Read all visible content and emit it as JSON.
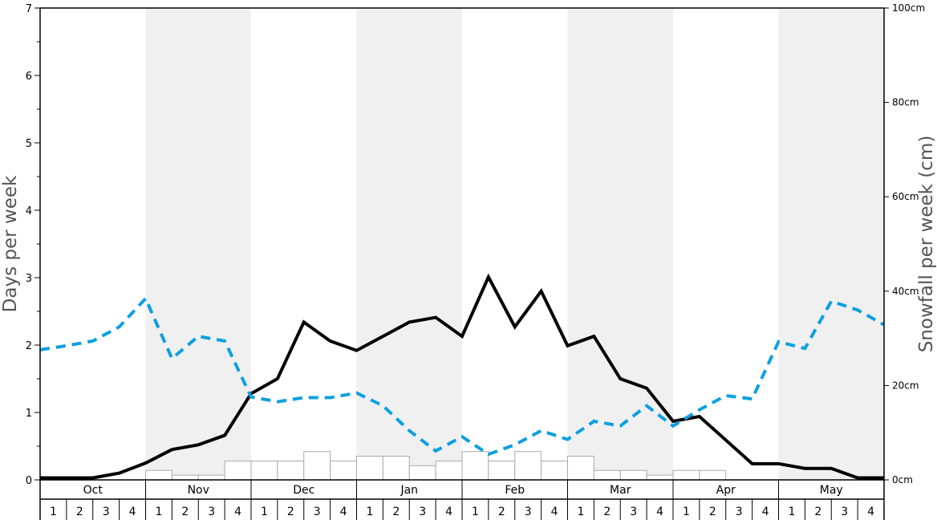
{
  "chart_data": {
    "type": "bar",
    "ylabel_left": "Days per week",
    "ylabel_right": "Snowfall per week (cm)",
    "ylim_left": [
      0,
      7
    ],
    "yticks_left": [
      "0",
      "1",
      "2",
      "3",
      "4",
      "5",
      "6",
      "7"
    ],
    "ylim_right": [
      0,
      100
    ],
    "yticks_right": [
      "0cm",
      "20cm",
      "40cm",
      "60cm",
      "80cm",
      "100cm"
    ],
    "months": [
      "Oct",
      "Nov",
      "Dec",
      "Jan",
      "Feb",
      "Mar",
      "Apr",
      "May"
    ],
    "weeks": [
      "1",
      "2",
      "3",
      "4"
    ],
    "shaded_months": [
      "Nov",
      "Jan",
      "Mar",
      "May"
    ],
    "colors": {
      "shade": "#f0f0f0",
      "dashed_line": "#0ea0e0",
      "solid_line": "#000000",
      "bars_fill": "#ffffff",
      "bars_stroke": "#aaaaaa"
    },
    "series": [
      {
        "type": "bar",
        "axis": "right",
        "values": [
          0,
          0,
          0,
          0,
          2,
          1,
          1,
          4,
          4,
          4,
          6,
          4,
          5,
          5,
          3,
          4,
          6,
          4,
          6,
          4,
          5,
          2,
          2,
          1,
          2,
          2,
          0,
          0,
          0,
          0,
          0,
          0
        ]
      },
      {
        "type": "line",
        "style": "solid",
        "axis": "left",
        "values": [
          0.03,
          0.03,
          0.03,
          0.1,
          0.25,
          0.45,
          0.52,
          0.66,
          1.28,
          1.5,
          2.34,
          2.06,
          1.92,
          2.13,
          2.34,
          2.41,
          2.13,
          3.01,
          2.27,
          2.8,
          1.99,
          2.13,
          1.5,
          1.36,
          0.87,
          0.94,
          0.59,
          0.24,
          0.24,
          0.17,
          0.17,
          0.03,
          0.03
        ]
      },
      {
        "type": "line",
        "style": "dashed",
        "axis": "left",
        "values": [
          1.93,
          1.99,
          2.06,
          2.27,
          2.69,
          1.8,
          2.13,
          2.06,
          1.23,
          1.16,
          1.22,
          1.22,
          1.29,
          1.1,
          0.73,
          0.43,
          0.64,
          0.38,
          0.52,
          0.73,
          0.6,
          0.87,
          0.8,
          1.1,
          0.8,
          1.04,
          1.25,
          1.2,
          2.05,
          1.95,
          2.65,
          2.52,
          2.3
        ]
      }
    ]
  }
}
